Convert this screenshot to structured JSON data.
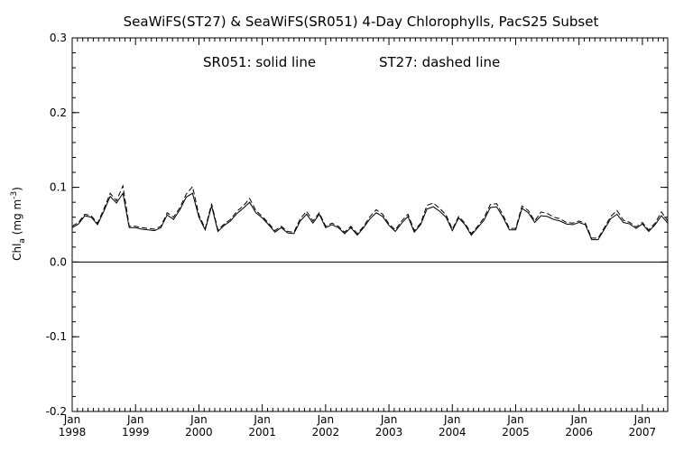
{
  "chart_data": {
    "type": "line",
    "title": "SeaWiFS(ST27) & SeaWiFS(SR051) 4-Day Chlorophylls, PacS25 Subset",
    "annotation_left": "SR051: solid line",
    "annotation_right": "ST27: dashed line",
    "ylabel": "Chl_a (mg m^-3)",
    "ylabel_parts": {
      "main": "Chl",
      "sub": "a",
      "unit_start": " (mg m",
      "sup": "-3",
      "unit_end": ")"
    },
    "ylim": [
      -0.2,
      0.3
    ],
    "yticks": [
      "0.3",
      "0.2",
      "0.1",
      "0.0",
      "-0.1",
      "-0.2"
    ],
    "ytick_values": [
      0.3,
      0.2,
      0.1,
      0.0,
      -0.1,
      -0.2
    ],
    "xlim": [
      1998.0,
      2007.4
    ],
    "xticks": [
      {
        "month": "Jan",
        "year": "1998",
        "value": 1998
      },
      {
        "month": "Jan",
        "year": "1999",
        "value": 1999
      },
      {
        "month": "Jan",
        "year": "2000",
        "value": 2000
      },
      {
        "month": "Jan",
        "year": "2001",
        "value": 2001
      },
      {
        "month": "Jan",
        "year": "2002",
        "value": 2002
      },
      {
        "month": "Jan",
        "year": "2003",
        "value": 2003
      },
      {
        "month": "Jan",
        "year": "2004",
        "value": 2004
      },
      {
        "month": "Jan",
        "year": "2005",
        "value": 2005
      },
      {
        "month": "Jan",
        "year": "2006",
        "value": 2006
      },
      {
        "month": "Jan",
        "year": "2007",
        "value": 2007
      }
    ],
    "zero_line": 0.0,
    "grid": false,
    "series": [
      {
        "style": "solid",
        "x": [
          1998.0,
          1998.1,
          1998.2,
          1998.3,
          1998.4,
          1998.5,
          1998.6,
          1998.7,
          1998.8,
          1998.9,
          1999.0,
          1999.1,
          1999.2,
          1999.3,
          1999.4,
          1999.5,
          1999.6,
          1999.7,
          1999.8,
          1999.9,
          2000.0,
          2000.1,
          2000.2,
          2000.3,
          2000.4,
          2000.5,
          2000.6,
          2000.7,
          2000.8,
          2000.9,
          2001.0,
          2001.1,
          2001.2,
          2001.3,
          2001.4,
          2001.5,
          2001.6,
          2001.7,
          2001.8,
          2001.9,
          2002.0,
          2002.1,
          2002.2,
          2002.3,
          2002.4,
          2002.5,
          2002.6,
          2002.7,
          2002.8,
          2002.9,
          2003.0,
          2003.1,
          2003.2,
          2003.3,
          2003.4,
          2003.5,
          2003.6,
          2003.7,
          2003.8,
          2003.9,
          2004.0,
          2004.1,
          2004.2,
          2004.3,
          2004.4,
          2004.5,
          2004.6,
          2004.7,
          2004.8,
          2004.9,
          2005.0,
          2005.1,
          2005.2,
          2005.3,
          2005.4,
          2005.5,
          2005.6,
          2005.7,
          2005.8,
          2005.9,
          2006.0,
          2006.1,
          2006.2,
          2006.3,
          2006.4,
          2006.5,
          2006.6,
          2006.7,
          2006.8,
          2006.9,
          2007.0,
          2007.1,
          2007.2,
          2007.3,
          2007.4
        ],
        "y": [
          0.046,
          0.051,
          0.062,
          0.06,
          0.05,
          0.068,
          0.088,
          0.079,
          0.092,
          0.046,
          0.046,
          0.044,
          0.043,
          0.042,
          0.046,
          0.063,
          0.057,
          0.07,
          0.087,
          0.092,
          0.06,
          0.043,
          0.075,
          0.041,
          0.049,
          0.055,
          0.065,
          0.072,
          0.08,
          0.066,
          0.059,
          0.05,
          0.04,
          0.046,
          0.039,
          0.038,
          0.055,
          0.064,
          0.052,
          0.064,
          0.046,
          0.05,
          0.046,
          0.038,
          0.046,
          0.036,
          0.046,
          0.058,
          0.066,
          0.061,
          0.049,
          0.041,
          0.052,
          0.061,
          0.04,
          0.05,
          0.071,
          0.074,
          0.068,
          0.06,
          0.042,
          0.059,
          0.05,
          0.036,
          0.046,
          0.056,
          0.073,
          0.074,
          0.06,
          0.043,
          0.043,
          0.072,
          0.066,
          0.053,
          0.062,
          0.061,
          0.057,
          0.055,
          0.051,
          0.05,
          0.053,
          0.05,
          0.03,
          0.03,
          0.044,
          0.058,
          0.064,
          0.053,
          0.051,
          0.045,
          0.051,
          0.041,
          0.05,
          0.062,
          0.052
        ]
      },
      {
        "style": "dashed",
        "x": [
          1998.0,
          1998.1,
          1998.2,
          1998.3,
          1998.4,
          1998.5,
          1998.6,
          1998.7,
          1998.8,
          1998.9,
          1999.0,
          1999.1,
          1999.2,
          1999.3,
          1999.4,
          1999.5,
          1999.6,
          1999.7,
          1999.8,
          1999.9,
          2000.0,
          2000.1,
          2000.2,
          2000.3,
          2000.4,
          2000.5,
          2000.6,
          2000.7,
          2000.8,
          2000.9,
          2001.0,
          2001.1,
          2001.2,
          2001.3,
          2001.4,
          2001.5,
          2001.6,
          2001.7,
          2001.8,
          2001.9,
          2002.0,
          2002.1,
          2002.2,
          2002.3,
          2002.4,
          2002.5,
          2002.6,
          2002.7,
          2002.8,
          2002.9,
          2003.0,
          2003.1,
          2003.2,
          2003.3,
          2003.4,
          2003.5,
          2003.6,
          2003.7,
          2003.8,
          2003.9,
          2004.0,
          2004.1,
          2004.2,
          2004.3,
          2004.4,
          2004.5,
          2004.6,
          2004.7,
          2004.8,
          2004.9,
          2005.0,
          2005.1,
          2005.2,
          2005.3,
          2005.4,
          2005.5,
          2005.6,
          2005.7,
          2005.8,
          2005.9,
          2006.0,
          2006.1,
          2006.2,
          2006.3,
          2006.4,
          2006.5,
          2006.6,
          2006.7,
          2006.8,
          2006.9,
          2007.0,
          2007.1,
          2007.2,
          2007.3,
          2007.4
        ],
        "y": [
          0.048,
          0.053,
          0.064,
          0.062,
          0.052,
          0.071,
          0.092,
          0.082,
          0.102,
          0.048,
          0.048,
          0.046,
          0.045,
          0.044,
          0.048,
          0.066,
          0.06,
          0.073,
          0.091,
          0.101,
          0.063,
          0.045,
          0.078,
          0.043,
          0.051,
          0.057,
          0.068,
          0.075,
          0.085,
          0.069,
          0.061,
          0.052,
          0.042,
          0.048,
          0.041,
          0.04,
          0.058,
          0.068,
          0.055,
          0.066,
          0.048,
          0.052,
          0.048,
          0.04,
          0.048,
          0.038,
          0.048,
          0.061,
          0.07,
          0.064,
          0.051,
          0.043,
          0.055,
          0.064,
          0.042,
          0.052,
          0.076,
          0.079,
          0.072,
          0.063,
          0.044,
          0.061,
          0.052,
          0.038,
          0.048,
          0.059,
          0.077,
          0.078,
          0.063,
          0.045,
          0.045,
          0.075,
          0.069,
          0.055,
          0.067,
          0.065,
          0.06,
          0.058,
          0.053,
          0.052,
          0.055,
          0.052,
          0.032,
          0.032,
          0.046,
          0.061,
          0.069,
          0.056,
          0.053,
          0.047,
          0.053,
          0.043,
          0.052,
          0.067,
          0.055
        ]
      }
    ]
  }
}
